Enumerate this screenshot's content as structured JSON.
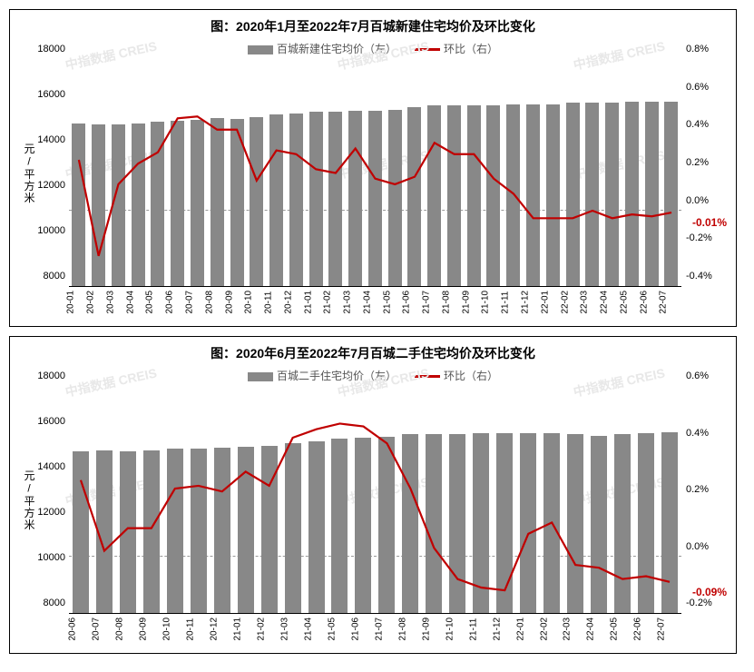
{
  "chart1": {
    "type": "bar+line",
    "title": "图：2020年1月至2022年7月百城新建住宅均价及环比变化",
    "legend_bar": "百城新建住宅均价（左）",
    "legend_line": "环比（右）",
    "bar_color": "#888888",
    "line_color": "#c00000",
    "background_color": "#ffffff",
    "grid_color": "#cccccc",
    "y1_label": "元/平方米",
    "y1_min": 8000,
    "y1_max": 18000,
    "y1_step": 2000,
    "y2_min": -0.4,
    "y2_max": 0.8,
    "y2_step": 0.2,
    "y2_suffix": "%",
    "categories": [
      "20-01",
      "20-02",
      "20-03",
      "20-04",
      "20-05",
      "20-06",
      "20-07",
      "20-08",
      "20-09",
      "20-10",
      "20-11",
      "20-12",
      "21-01",
      "21-02",
      "21-03",
      "21-04",
      "21-05",
      "21-06",
      "21-07",
      "21-08",
      "21-09",
      "21-10",
      "21-11",
      "21-12",
      "22-01",
      "22-02",
      "22-03",
      "22-04",
      "22-05",
      "22-06",
      "22-07"
    ],
    "bar_values": [
      15200,
      15150,
      15150,
      15180,
      15250,
      15300,
      15350,
      15450,
      15380,
      15480,
      15600,
      15650,
      15700,
      15700,
      15750,
      15750,
      15800,
      15900,
      16000,
      16000,
      16000,
      16000,
      16050,
      16050,
      16050,
      16100,
      16100,
      16100,
      16150,
      16150,
      16150
    ],
    "line_values": [
      0.27,
      -0.24,
      0.14,
      0.25,
      0.31,
      0.49,
      0.5,
      0.43,
      0.43,
      0.16,
      0.32,
      0.3,
      0.22,
      0.2,
      0.33,
      0.17,
      0.14,
      0.18,
      0.36,
      0.3,
      0.3,
      0.17,
      0.09,
      -0.04,
      -0.04,
      -0.04,
      0.0,
      -0.04,
      -0.02,
      -0.03,
      -0.01
    ],
    "end_label": "-0.01%",
    "title_fontsize": 14,
    "label_fontsize": 12
  },
  "chart2": {
    "type": "bar+line",
    "title": "图：2020年6月至2022年7月百城二手住宅均价及环比变化",
    "legend_bar": "百城二手住宅均价（左）",
    "legend_line": "环比（右）",
    "bar_color": "#888888",
    "line_color": "#c00000",
    "background_color": "#ffffff",
    "grid_color": "#cccccc",
    "y1_label": "元/平方米",
    "y1_min": 8000,
    "y1_max": 18000,
    "y1_step": 2000,
    "y2_min": -0.2,
    "y2_max": 0.6,
    "y2_step": 0.2,
    "y2_suffix": "%",
    "categories": [
      "20-06",
      "20-07",
      "20-08",
      "20-09",
      "20-10",
      "20-11",
      "20-12",
      "21-01",
      "21-02",
      "21-03",
      "21-04",
      "21-05",
      "21-06",
      "21-07",
      "21-08",
      "21-09",
      "21-10",
      "21-11",
      "21-12",
      "22-01",
      "22-02",
      "22-03",
      "22-04",
      "22-05",
      "22-06",
      "22-07"
    ],
    "bar_values": [
      15150,
      15200,
      15150,
      15200,
      15250,
      15250,
      15300,
      15350,
      15400,
      15500,
      15600,
      15700,
      15750,
      15800,
      15900,
      15900,
      15900,
      15950,
      15950,
      15950,
      15950,
      15900,
      15850,
      15920,
      15950,
      15980
    ],
    "line_values": [
      0.27,
      0.02,
      0.1,
      0.1,
      0.24,
      0.25,
      0.23,
      0.3,
      0.25,
      0.42,
      0.45,
      0.47,
      0.46,
      0.4,
      0.24,
      0.03,
      -0.08,
      -0.11,
      -0.12,
      0.08,
      0.12,
      -0.03,
      -0.04,
      -0.08,
      -0.07,
      -0.09
    ],
    "end_label": "-0.09%",
    "title_fontsize": 14,
    "label_fontsize": 12
  },
  "watermark_text": "中指数据  CREIS"
}
